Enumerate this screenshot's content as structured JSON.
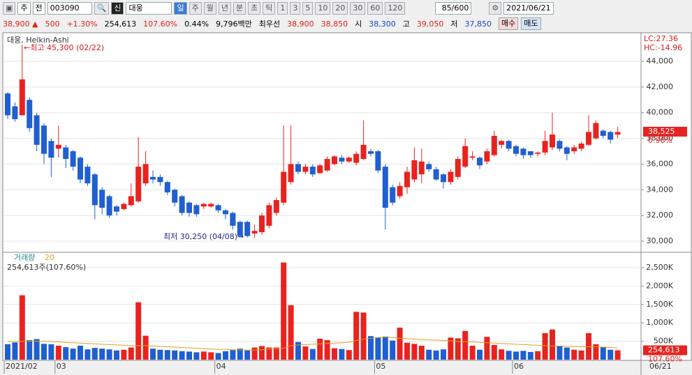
{
  "toolbar": {
    "row1": [
      "주",
      "전",
      "003090",
      "신",
      "대웅",
      "일",
      "주",
      "월",
      "년",
      "분",
      "초",
      "틱",
      "1",
      "3",
      "5",
      "10",
      "20",
      "30",
      "60",
      "120",
      "85/600",
      "2021/06/21"
    ],
    "row2": [
      "38,900 ▲",
      "500",
      "+1.30%",
      "254,613",
      "107.60%",
      "0.44%",
      "9,796백만",
      "최우선",
      "38,900",
      "38,850",
      "시",
      "38,300",
      "고",
      "39,050",
      "저",
      "37,850",
      "매수",
      "매도"
    ]
  },
  "chart_data": [
    {
      "type": "candlestick",
      "title": "대웅, Heikin-Ashi",
      "up_color": "#e8231f",
      "down_color": "#1f5fd0",
      "ylim": [
        29240,
        45520
      ],
      "yticks": [
        {
          "value": 30000,
          "label": "30,000"
        },
        {
          "value": 32000,
          "label": "32,000"
        },
        {
          "value": 34000,
          "label": "34,000"
        },
        {
          "value": 36000,
          "label": "36,000"
        },
        {
          "value": 38000,
          "label": "38,000"
        },
        {
          "value": 40000,
          "label": "40,000"
        },
        {
          "value": 42000,
          "label": "42,000"
        },
        {
          "value": 44000,
          "label": "44,000"
        }
      ],
      "grid": true,
      "annotations": [
        "←최고 45,300 (02/22)",
        "최저 30,250 (04/08)→",
        "LC:27.36",
        "HC:-14.96",
        "0.98%"
      ],
      "last": {
        "value": 38525,
        "label": "38,525"
      },
      "open": [
        41500,
        40500,
        39800,
        41000,
        39800,
        39000,
        37800,
        37200,
        37300,
        37000,
        36500,
        35800,
        35200,
        34000,
        33500,
        32700,
        32500,
        32800,
        33100,
        34500,
        35000,
        35000,
        34600,
        34000,
        33500,
        33000,
        32800,
        32700,
        32700,
        32800,
        32400,
        32200,
        31500,
        31500,
        30600,
        30700,
        31200,
        32200,
        33000,
        34600,
        36000,
        35400,
        35800,
        35300,
        35500,
        36000,
        36500,
        36200,
        36100,
        36400,
        37000,
        37000,
        35800,
        34200,
        33500,
        34200,
        34800,
        35200,
        36000,
        35600,
        35200,
        34600,
        35000,
        35800,
        36500,
        36500,
        36200,
        36700,
        37500,
        37800,
        37400,
        37200,
        37000,
        36800,
        36900,
        37300,
        37800,
        37300,
        37000,
        37200,
        37500,
        38000,
        38600,
        38500,
        38300
      ],
      "close": [
        39800,
        39500,
        42600,
        38800,
        37500,
        36800,
        36500,
        37500,
        36400,
        35800,
        34800,
        34500,
        32800,
        32600,
        32000,
        32300,
        32900,
        33500,
        35800,
        36000,
        34800,
        34600,
        33800,
        33000,
        32200,
        32200,
        32100,
        32900,
        32900,
        32400,
        32100,
        31200,
        30400,
        30400,
        30800,
        32000,
        32800,
        33200,
        35400,
        36000,
        35400,
        35800,
        35200,
        35900,
        36400,
        36600,
        36200,
        36500,
        36800,
        37500,
        36800,
        35500,
        32600,
        33000,
        34300,
        35400,
        36300,
        36200,
        35600,
        34800,
        34600,
        35400,
        36400,
        37400,
        36600,
        35900,
        37000,
        38200,
        37800,
        37200,
        36800,
        36700,
        36700,
        36900,
        37800,
        38300,
        37200,
        36800,
        37300,
        37600,
        38500,
        39200,
        38200,
        37900,
        38500
      ],
      "high": [
        41600,
        40800,
        45300,
        41200,
        40000,
        39200,
        38000,
        39000,
        37500,
        37100,
        36600,
        36000,
        35300,
        34200,
        33600,
        32800,
        33000,
        34500,
        38100,
        37000,
        35500,
        35200,
        34700,
        34100,
        33600,
        33100,
        32900,
        33000,
        33000,
        32900,
        32500,
        32300,
        31600,
        31600,
        31300,
        32200,
        33000,
        33400,
        39000,
        39000,
        36200,
        36000,
        36000,
        36000,
        36600,
        36700,
        36700,
        36600,
        37000,
        39400,
        37200,
        37100,
        36000,
        34400,
        34600,
        35800,
        37300,
        37200,
        36200,
        35800,
        35300,
        35600,
        36600,
        38000,
        37000,
        36600,
        37200,
        38600,
        37900,
        37900,
        37500,
        37300,
        37000,
        37000,
        38600,
        40000,
        37900,
        37400,
        37500,
        37700,
        39800,
        39400,
        38700,
        38600,
        38900
      ],
      "low": [
        39500,
        39300,
        39800,
        38500,
        37000,
        36000,
        35000,
        36500,
        35700,
        35500,
        34500,
        34300,
        31700,
        32100,
        31800,
        32000,
        32400,
        32700,
        33000,
        34300,
        34500,
        34300,
        33600,
        32700,
        32000,
        31900,
        31900,
        32500,
        32600,
        32200,
        31700,
        30900,
        30250,
        30300,
        30250,
        30500,
        31000,
        32000,
        32800,
        34400,
        35200,
        35200,
        35000,
        35200,
        35400,
        35900,
        36000,
        36100,
        35900,
        36300,
        36600,
        35300,
        30900,
        32800,
        33300,
        33700,
        34600,
        34500,
        35400,
        34700,
        34100,
        34400,
        34800,
        35700,
        36300,
        35600,
        36000,
        36600,
        37200,
        37000,
        36600,
        36400,
        36500,
        36600,
        36700,
        37100,
        37000,
        36300,
        36800,
        37000,
        37400,
        37900,
        38000,
        37600,
        38000
      ]
    },
    {
      "type": "bar",
      "annotations": [
        "254,613주(107.60%)",
        "107.60%"
      ],
      "last": {
        "value": 254613,
        "label": "254,613"
      },
      "ylim": [
        0,
        2860000
      ],
      "yticks": [
        {
          "value": 500000,
          "label": "500K"
        },
        {
          "value": 1000000,
          "label": "1,000K"
        },
        {
          "value": 1500000,
          "label": "1,500K"
        },
        {
          "value": 2000000,
          "label": "2,000K"
        },
        {
          "value": 2500000,
          "label": "2,500K"
        }
      ],
      "grid": true,
      "categories": [
        "2021/02",
        null,
        null,
        null,
        null,
        null,
        null,
        "03",
        null,
        null,
        null,
        null,
        null,
        null,
        null,
        null,
        null,
        null,
        null,
        null,
        null,
        null,
        null,
        null,
        null,
        null,
        null,
        null,
        null,
        "04",
        null,
        null,
        null,
        null,
        null,
        null,
        null,
        null,
        null,
        null,
        null,
        null,
        null,
        null,
        null,
        null,
        null,
        null,
        null,
        null,
        null,
        "05",
        null,
        null,
        null,
        null,
        null,
        null,
        null,
        null,
        null,
        null,
        null,
        null,
        null,
        null,
        null,
        null,
        null,
        null,
        "06",
        null,
        null,
        null,
        null,
        null,
        null,
        null,
        null,
        null,
        null,
        null,
        null,
        null,
        null
      ],
      "end_label": "06/21",
      "series": [
        {
          "name": "거래량",
          "type": "bar",
          "values": [
            420000,
            470000,
            1750000,
            530000,
            560000,
            430000,
            420000,
            380000,
            340000,
            300000,
            380000,
            280000,
            320000,
            300000,
            280000,
            250000,
            270000,
            330000,
            1560000,
            650000,
            300000,
            270000,
            260000,
            250000,
            230000,
            220000,
            200000,
            220000,
            200000,
            180000,
            230000,
            260000,
            300000,
            250000,
            330000,
            370000,
            330000,
            330000,
            2640000,
            1480000,
            480000,
            360000,
            290000,
            570000,
            530000,
            310000,
            290000,
            260000,
            1300000,
            1280000,
            640000,
            610000,
            630000,
            520000,
            870000,
            460000,
            430000,
            380000,
            270000,
            250000,
            280000,
            600000,
            580000,
            780000,
            380000,
            270000,
            620000,
            400000,
            280000,
            240000,
            220000,
            240000,
            210000,
            230000,
            720000,
            820000,
            380000,
            330000,
            270000,
            250000,
            720000,
            420000,
            350000,
            270000,
            254613
          ]
        },
        {
          "name": "20",
          "type": "line",
          "color": "#e0a020",
          "values": [
            500000,
            500000,
            500000,
            500000,
            500000,
            500000,
            490000,
            480000,
            470000,
            460000,
            450000,
            440000,
            430000,
            420000,
            410000,
            400000,
            390000,
            380000,
            380000,
            380000,
            370000,
            360000,
            350000,
            340000,
            330000,
            320000,
            310000,
            300000,
            290000,
            280000,
            280000,
            270000,
            270000,
            260000,
            260000,
            270000,
            290000,
            300000,
            310000,
            380000,
            400000,
            410000,
            420000,
            430000,
            440000,
            450000,
            460000,
            470000,
            520000,
            560000,
            580000,
            600000,
            620000,
            600000,
            580000,
            570000,
            560000,
            550000,
            540000,
            530000,
            520000,
            510000,
            500000,
            490000,
            480000,
            470000,
            460000,
            450000,
            440000,
            430000,
            420000,
            410000,
            400000,
            390000,
            380000,
            370000,
            370000,
            360000,
            360000,
            350000,
            350000,
            350000,
            340000,
            330000,
            320000
          ]
        }
      ]
    }
  ]
}
